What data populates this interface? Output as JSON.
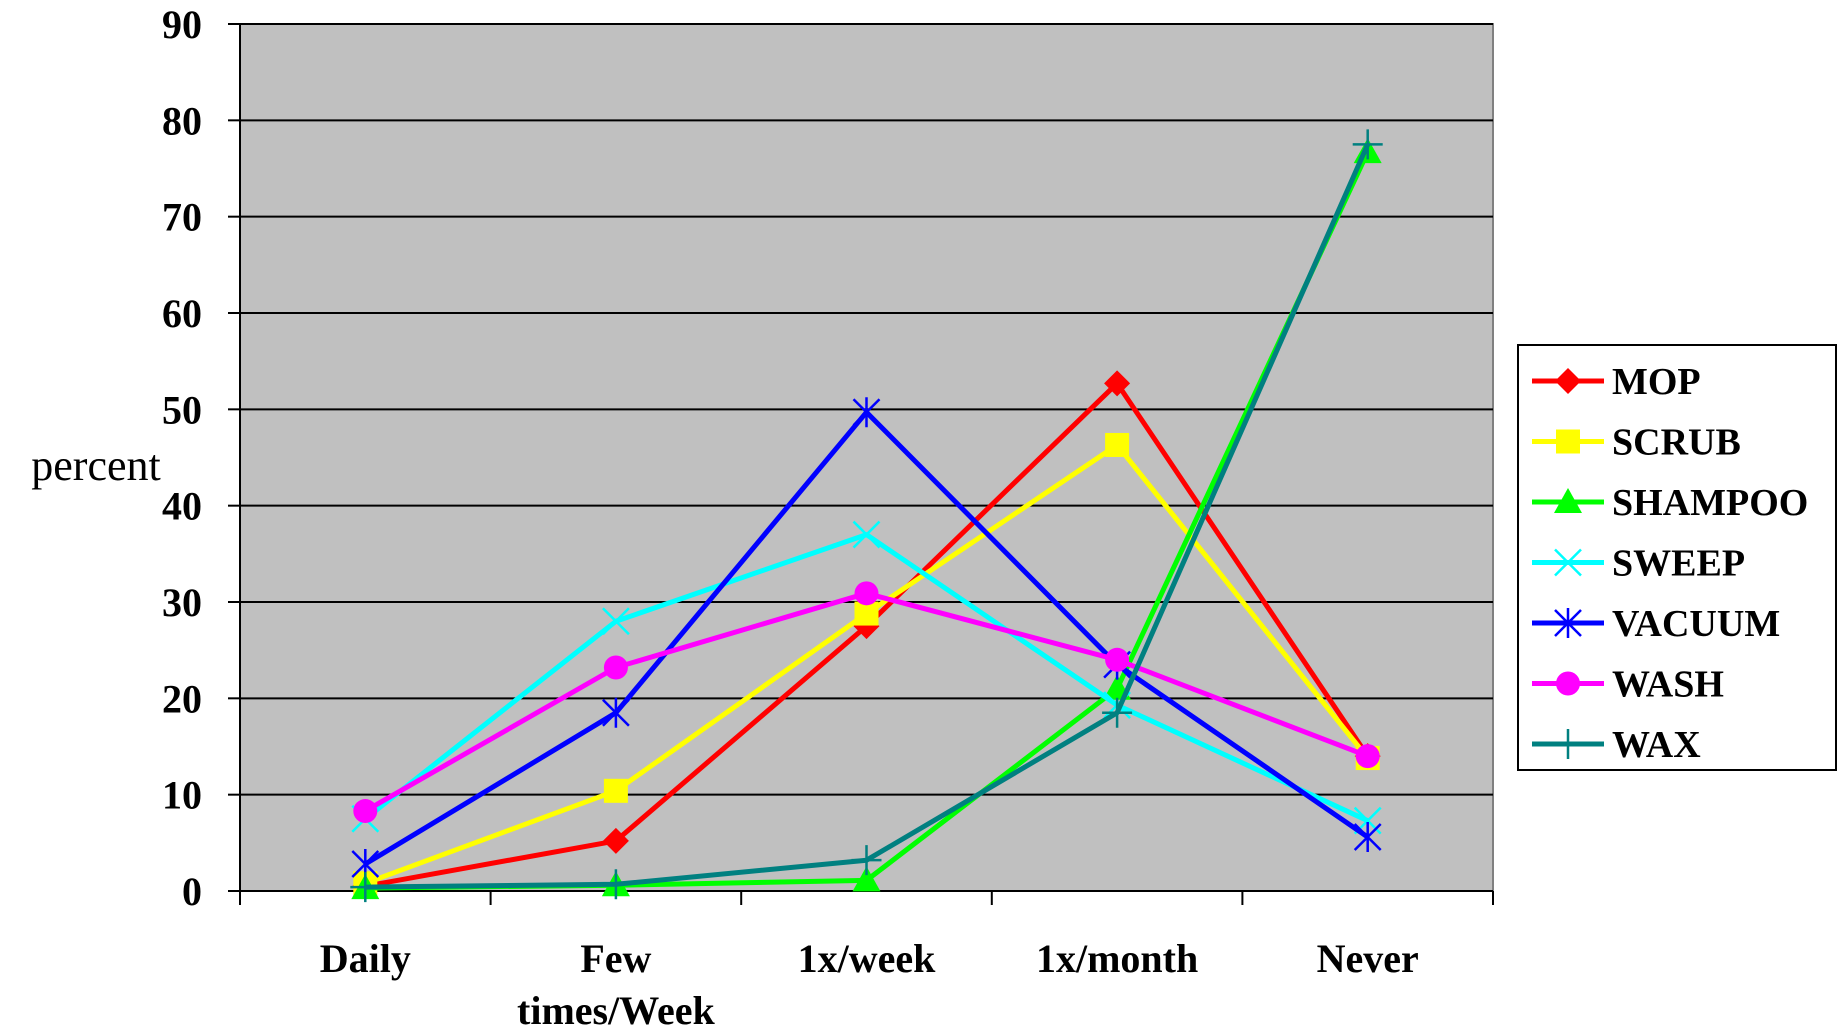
{
  "chart_data": {
    "type": "line",
    "categories": [
      "Daily",
      "Few times/Week",
      "1x/week",
      "1x/month",
      "Never"
    ],
    "category_lines": [
      [
        "Daily"
      ],
      [
        "Few",
        "times/Week"
      ],
      [
        "1x/week"
      ],
      [
        "1x/month"
      ],
      [
        "Never"
      ]
    ],
    "ylabel": "percent",
    "ylim": [
      0,
      90
    ],
    "yticks": [
      0,
      10,
      20,
      30,
      40,
      50,
      60,
      70,
      80,
      90
    ],
    "grid": true,
    "legend_position": "right",
    "plot_background": "#c0c0c0",
    "series": [
      {
        "name": "MOP",
        "color": "#ff0000",
        "marker": "diamond",
        "values": [
          0.5,
          5.2,
          27.5,
          52.7,
          14.0
        ]
      },
      {
        "name": "SCRUB",
        "color": "#ffff00",
        "marker": "square",
        "values": [
          0.8,
          10.4,
          28.8,
          46.3,
          13.8
        ]
      },
      {
        "name": "SHAMPOO",
        "color": "#00ff00",
        "marker": "triangle",
        "values": [
          0.3,
          0.6,
          1.1,
          21.0,
          76.7
        ]
      },
      {
        "name": "SWEEP",
        "color": "#00ffff",
        "marker": "x",
        "values": [
          7.5,
          28.0,
          37.0,
          19.3,
          7.3
        ]
      },
      {
        "name": "VACUUM",
        "color": "#0000ff",
        "marker": "asterisk",
        "values": [
          2.8,
          18.5,
          49.7,
          23.5,
          5.6
        ]
      },
      {
        "name": "WASH",
        "color": "#ff00ff",
        "marker": "circle",
        "values": [
          8.3,
          23.2,
          30.9,
          24.0,
          14.0
        ]
      },
      {
        "name": "WAX",
        "color": "#008080",
        "marker": "plus",
        "values": [
          0.4,
          0.7,
          3.2,
          18.5,
          77.5
        ]
      }
    ]
  }
}
